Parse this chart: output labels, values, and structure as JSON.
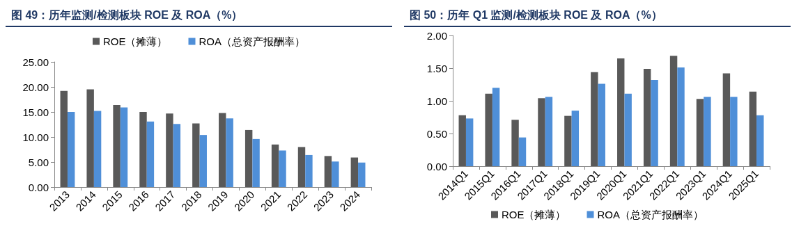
{
  "chart_data": [
    {
      "type": "bar",
      "title": "图 49：历年监测/检测板块 ROE 及 ROA（%）",
      "categories": [
        "2013",
        "2014",
        "2015",
        "2016",
        "2017",
        "2018",
        "2019",
        "2020",
        "2021",
        "2022",
        "2023",
        "2024"
      ],
      "series": [
        {
          "name": "ROE（摊薄）",
          "color": "#595959",
          "values": [
            19.2,
            19.5,
            16.4,
            15.0,
            14.7,
            12.7,
            14.8,
            11.4,
            8.5,
            8.0,
            6.2,
            5.9
          ]
        },
        {
          "name": "ROA（总资产报酬率）",
          "color": "#4f8fd8",
          "values": [
            15.0,
            15.2,
            15.9,
            13.1,
            12.6,
            10.4,
            13.7,
            9.6,
            7.3,
            6.4,
            5.1,
            4.9
          ]
        }
      ],
      "ylim": [
        0,
        25
      ],
      "yticks": [
        {
          "value": 0,
          "label": "0.00"
        },
        {
          "value": 5,
          "label": "5.00"
        },
        {
          "value": 10,
          "label": "10.00"
        },
        {
          "value": 15,
          "label": "15.00"
        },
        {
          "value": 20,
          "label": "20.00"
        },
        {
          "value": 25,
          "label": "25.00"
        }
      ],
      "grid": false,
      "legend": "top"
    },
    {
      "type": "bar",
      "title": "图 50：历年 Q1 监测/检测板块 ROE 及 ROA（%）",
      "categories": [
        "2014Q1",
        "2015Q1",
        "2016Q1",
        "2017Q1",
        "2018Q1",
        "2019Q1",
        "2020Q1",
        "2021Q1",
        "2022Q1",
        "2023Q1",
        "2024Q1",
        "2025Q1"
      ],
      "series": [
        {
          "name": "ROE（摊薄）",
          "color": "#595959",
          "values": [
            0.78,
            1.11,
            0.71,
            1.04,
            0.77,
            1.44,
            1.65,
            1.49,
            1.69,
            1.03,
            1.42,
            1.14
          ]
        },
        {
          "name": "ROA（总资产报酬率）",
          "color": "#4f8fd8",
          "values": [
            0.73,
            1.2,
            0.44,
            1.06,
            0.85,
            1.26,
            1.11,
            1.32,
            1.51,
            1.06,
            1.06,
            0.78
          ]
        }
      ],
      "ylim": [
        0,
        2
      ],
      "yticks": [
        {
          "value": 0,
          "label": "0.00"
        },
        {
          "value": 0.5,
          "label": "0.50"
        },
        {
          "value": 1,
          "label": "1.00"
        },
        {
          "value": 1.5,
          "label": "1.50"
        },
        {
          "value": 2,
          "label": "2.00"
        }
      ],
      "grid": false,
      "legend": "bottom"
    }
  ]
}
